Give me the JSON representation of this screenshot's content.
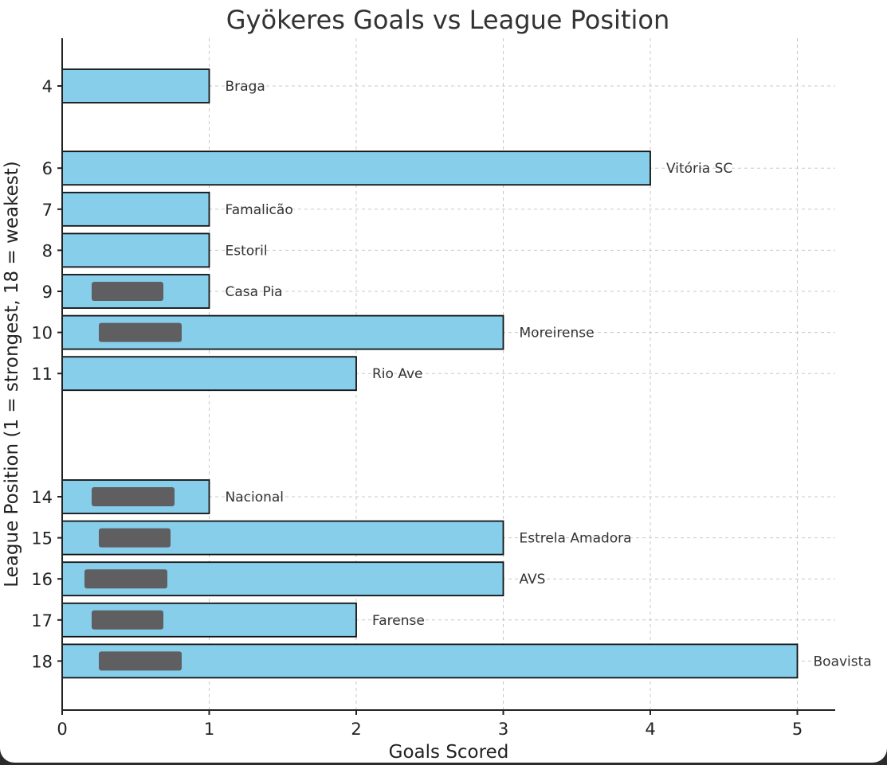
{
  "chart_data": {
    "type": "bar",
    "orientation": "horizontal",
    "title": "Gyökeres Goals vs League Position",
    "xlabel": "Goals Scored",
    "ylabel": "League Position (1 = strongest, 18 = weakest)",
    "xlim": [
      0,
      5.25
    ],
    "ylim": [
      3.4,
      19.1
    ],
    "x_ticks": [
      0,
      1,
      2,
      3,
      4,
      5
    ],
    "y_ticks": [
      4,
      6,
      7,
      8,
      9,
      10,
      11,
      14,
      15,
      16,
      17,
      18
    ],
    "y_inverted": true,
    "grid": true,
    "bar_color": "#87ceeb",
    "bars": [
      {
        "position": 4,
        "value": 1,
        "label": "Braga",
        "redacted": false
      },
      {
        "position": 6,
        "value": 4,
        "label": "Vitória SC",
        "redacted": false
      },
      {
        "position": 7,
        "value": 1,
        "label": "Famalicão",
        "redacted": false
      },
      {
        "position": 8,
        "value": 1,
        "label": "Estoril",
        "redacted": false
      },
      {
        "position": 9,
        "value": 1,
        "label": "Casa Pia",
        "redacted": true
      },
      {
        "position": 10,
        "value": 3,
        "label": "Moreirense",
        "redacted": true
      },
      {
        "position": 11,
        "value": 2,
        "label": "Rio Ave",
        "redacted": false
      },
      {
        "position": 14,
        "value": 1,
        "label": "Nacional",
        "redacted": true
      },
      {
        "position": 15,
        "value": 3,
        "label": "Estrela Amadora",
        "redacted": true
      },
      {
        "position": 16,
        "value": 3,
        "label": "AVS",
        "redacted": true
      },
      {
        "position": 17,
        "value": 2,
        "label": "Farense",
        "redacted": true
      },
      {
        "position": 18,
        "value": 5,
        "label": "Boavista",
        "redacted": true
      }
    ]
  }
}
